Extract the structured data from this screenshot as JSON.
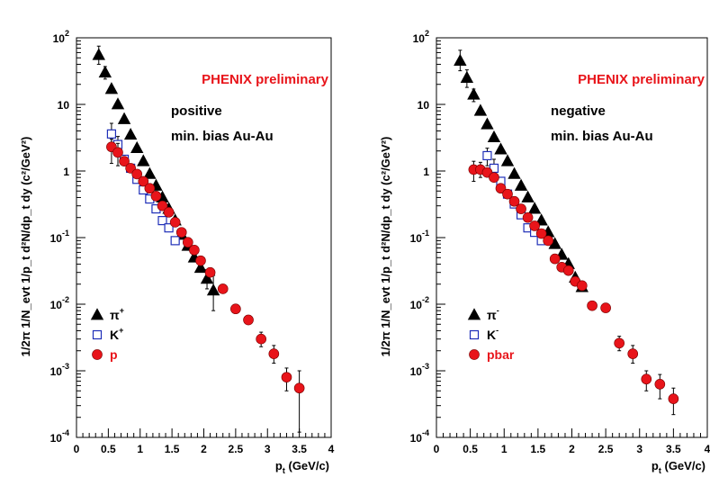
{
  "chart_data": [
    {
      "type": "scatter",
      "title": "",
      "annotations": [
        "PHENIX preliminary",
        "positive",
        "min. bias Au-Au"
      ],
      "xlabel": {
        "main": "p",
        "sub": "t",
        "rest": " (GeV/c)"
      },
      "ylabel": "1/2π 1/N_evt 1/p_t d²N/dp_t dy (c²/GeV²)",
      "xlim": [
        0,
        4
      ],
      "ylim": [
        0.0001,
        100
      ],
      "yscale": "log",
      "x_ticks": [
        "0",
        "0.5",
        "1",
        "1.5",
        "2",
        "2.5",
        "3",
        "3.5",
        "4"
      ],
      "y_ticks": [
        {
          "base": "10",
          "exp": "-4"
        },
        {
          "base": "10",
          "exp": "-3"
        },
        {
          "base": "10",
          "exp": "-2"
        },
        {
          "base": "10",
          "exp": "-1"
        },
        {
          "base": "1",
          "exp": ""
        },
        {
          "base": "10",
          "exp": ""
        },
        {
          "base": "10",
          "exp": "2"
        }
      ],
      "legend_position": "bottom-left",
      "series": [
        {
          "name": "π+",
          "label_base": "π",
          "label_sup": "+",
          "marker": "triangle",
          "color": "#000000",
          "points": [
            [
              0.35,
              55
            ],
            [
              0.45,
              30
            ],
            [
              0.55,
              17
            ],
            [
              0.65,
              10
            ],
            [
              0.75,
              6
            ],
            [
              0.85,
              3.5
            ],
            [
              0.95,
              2.2
            ],
            [
              1.05,
              1.4
            ],
            [
              1.15,
              0.9
            ],
            [
              1.25,
              0.6
            ],
            [
              1.35,
              0.4
            ],
            [
              1.45,
              0.27
            ],
            [
              1.55,
              0.18
            ],
            [
              1.65,
              0.11
            ],
            [
              1.75,
              0.075
            ],
            [
              1.85,
              0.05
            ],
            [
              1.95,
              0.035
            ],
            [
              2.05,
              0.024
            ],
            [
              2.15,
              0.016
            ]
          ],
          "err": [
            [
              0.35,
              40,
              75
            ],
            [
              0.45,
              24,
              37
            ],
            [
              2.05,
              0.017,
              0.033
            ],
            [
              2.15,
              0.008,
              0.027
            ]
          ]
        },
        {
          "name": "K+",
          "label_base": "K",
          "label_sup": "+",
          "marker": "open-square",
          "color": "#1f2fb8",
          "points": [
            [
              0.55,
              3.6
            ],
            [
              0.65,
              2.5
            ],
            [
              0.75,
              1.5
            ],
            [
              0.85,
              1.1
            ],
            [
              0.95,
              0.75
            ],
            [
              1.05,
              0.52
            ],
            [
              1.15,
              0.38
            ],
            [
              1.25,
              0.27
            ],
            [
              1.35,
              0.18
            ],
            [
              1.45,
              0.14
            ],
            [
              1.55,
              0.09
            ]
          ],
          "err": [
            [
              0.55,
              2.2,
              5.2
            ],
            [
              0.65,
              1.7,
              3.3
            ]
          ]
        },
        {
          "name": "p",
          "label_base": "p",
          "label_sup": "",
          "marker": "circle",
          "color": "#e8141a",
          "points": [
            [
              0.55,
              2.3
            ],
            [
              0.65,
              1.9
            ],
            [
              0.75,
              1.4
            ],
            [
              0.85,
              1.1
            ],
            [
              0.95,
              0.9
            ],
            [
              1.05,
              0.7
            ],
            [
              1.15,
              0.55
            ],
            [
              1.25,
              0.42
            ],
            [
              1.35,
              0.3
            ],
            [
              1.45,
              0.24
            ],
            [
              1.55,
              0.17
            ],
            [
              1.65,
              0.12
            ],
            [
              1.75,
              0.085
            ],
            [
              1.85,
              0.065
            ],
            [
              1.95,
              0.045
            ],
            [
              2.1,
              0.03
            ],
            [
              2.3,
              0.017
            ],
            [
              2.5,
              0.0085
            ],
            [
              2.7,
              0.0058
            ],
            [
              2.9,
              0.003
            ],
            [
              3.1,
              0.0018
            ],
            [
              3.3,
              0.0008
            ],
            [
              3.5,
              0.00055
            ]
          ],
          "err": [
            [
              0.55,
              1.3,
              3.0
            ],
            [
              0.65,
              1.2,
              2.6
            ],
            [
              2.9,
              0.0023,
              0.0038
            ],
            [
              3.1,
              0.0013,
              0.0024
            ],
            [
              3.3,
              0.0005,
              0.0011
            ],
            [
              3.5,
              0.00012,
              0.001
            ]
          ]
        }
      ]
    },
    {
      "type": "scatter",
      "title": "",
      "annotations": [
        "PHENIX preliminary",
        "negative",
        "min. bias Au-Au"
      ],
      "xlabel": {
        "main": "p",
        "sub": "t",
        "rest": " (GeV/c)"
      },
      "ylabel": "1/2π 1/N_evt 1/p_t d²N/dp_t dy (c²/GeV²)",
      "xlim": [
        0,
        4
      ],
      "ylim": [
        0.0001,
        100
      ],
      "yscale": "log",
      "x_ticks": [
        "0",
        "0.5",
        "1",
        "1.5",
        "2",
        "2.5",
        "3",
        "3.5",
        "4"
      ],
      "y_ticks": [
        {
          "base": "10",
          "exp": "-4"
        },
        {
          "base": "10",
          "exp": "-3"
        },
        {
          "base": "10",
          "exp": "-2"
        },
        {
          "base": "10",
          "exp": "-1"
        },
        {
          "base": "1",
          "exp": ""
        },
        {
          "base": "10",
          "exp": ""
        },
        {
          "base": "10",
          "exp": "2"
        }
      ],
      "legend_position": "bottom-left",
      "series": [
        {
          "name": "π-",
          "label_base": "π",
          "label_sup": "-",
          "marker": "triangle",
          "color": "#000000",
          "points": [
            [
              0.35,
              45
            ],
            [
              0.45,
              25
            ],
            [
              0.55,
              14
            ],
            [
              0.65,
              8
            ],
            [
              0.75,
              5
            ],
            [
              0.85,
              3.2
            ],
            [
              0.95,
              2.1
            ],
            [
              1.05,
              1.4
            ],
            [
              1.15,
              0.9
            ],
            [
              1.25,
              0.6
            ],
            [
              1.35,
              0.4
            ],
            [
              1.45,
              0.27
            ],
            [
              1.55,
              0.18
            ],
            [
              1.65,
              0.12
            ],
            [
              1.75,
              0.08
            ],
            [
              1.85,
              0.055
            ],
            [
              1.95,
              0.04
            ],
            [
              2.05,
              0.025
            ],
            [
              2.15,
              0.018
            ]
          ],
          "err": [
            [
              0.35,
              32,
              65
            ],
            [
              0.45,
              18,
              33
            ],
            [
              0.55,
              11,
              17
            ]
          ]
        },
        {
          "name": "K-",
          "label_base": "K",
          "label_sup": "-",
          "marker": "open-square",
          "color": "#1f2fb8",
          "points": [
            [
              0.75,
              1.7
            ],
            [
              0.85,
              1.1
            ],
            [
              0.95,
              0.7
            ],
            [
              1.05,
              0.45
            ],
            [
              1.15,
              0.32
            ],
            [
              1.25,
              0.22
            ],
            [
              1.35,
              0.14
            ],
            [
              1.45,
              0.12
            ],
            [
              1.55,
              0.09
            ]
          ],
          "err": [
            [
              0.75,
              1.2,
              2.2
            ],
            [
              0.85,
              0.75,
              1.5
            ]
          ]
        },
        {
          "name": "pbar",
          "label_base": "pbar",
          "label_sup": "",
          "marker": "circle",
          "color": "#e8141a",
          "points": [
            [
              0.55,
              1.05
            ],
            [
              0.65,
              1.05
            ],
            [
              0.75,
              0.95
            ],
            [
              0.85,
              0.8
            ],
            [
              0.95,
              0.55
            ],
            [
              1.05,
              0.45
            ],
            [
              1.15,
              0.35
            ],
            [
              1.25,
              0.27
            ],
            [
              1.35,
              0.2
            ],
            [
              1.45,
              0.15
            ],
            [
              1.55,
              0.115
            ],
            [
              1.65,
              0.09
            ],
            [
              1.75,
              0.048
            ],
            [
              1.85,
              0.036
            ],
            [
              1.95,
              0.032
            ],
            [
              2.05,
              0.022
            ],
            [
              2.15,
              0.019
            ],
            [
              2.3,
              0.0095
            ],
            [
              2.5,
              0.0088
            ],
            [
              2.7,
              0.0026
            ],
            [
              2.9,
              0.0018
            ],
            [
              3.1,
              0.00075
            ],
            [
              3.3,
              0.00063
            ],
            [
              3.5,
              0.00038
            ]
          ],
          "err": [
            [
              0.55,
              0.7,
              1.4
            ],
            [
              0.65,
              0.8,
              1.35
            ],
            [
              2.7,
              0.002,
              0.0033
            ],
            [
              2.9,
              0.0013,
              0.0024
            ],
            [
              3.1,
              0.0005,
              0.001
            ],
            [
              3.3,
              0.00038,
              0.00088
            ],
            [
              3.5,
              0.00022,
              0.00055
            ]
          ]
        }
      ]
    }
  ]
}
